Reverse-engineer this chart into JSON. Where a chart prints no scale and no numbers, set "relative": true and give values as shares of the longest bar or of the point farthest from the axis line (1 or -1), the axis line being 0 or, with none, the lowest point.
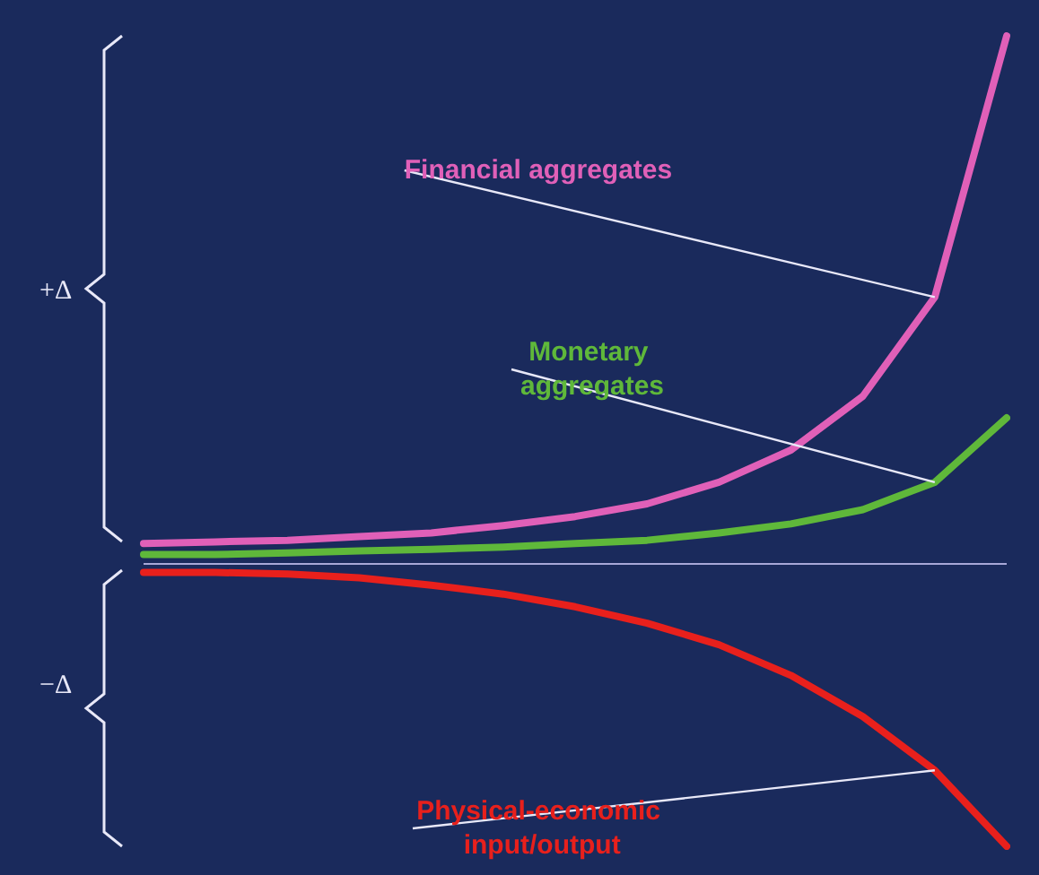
{
  "chart_data": {
    "type": "line",
    "relative": true,
    "categories": [
      null,
      null,
      null,
      null,
      null,
      null,
      null,
      null,
      null,
      null,
      null,
      null,
      null
    ],
    "series": [
      {
        "name": "Financial aggregates",
        "color": "#e060b8",
        "values": [
          0.038,
          0.041,
          0.044,
          0.051,
          0.058,
          0.072,
          0.089,
          0.113,
          0.154,
          0.215,
          0.317,
          0.505,
          1
        ]
      },
      {
        "name": "Monetary aggregates",
        "color": "#5fb83a",
        "values": [
          0.017,
          0.017,
          0.02,
          0.024,
          0.027,
          0.031,
          0.038,
          0.044,
          0.058,
          0.075,
          0.102,
          0.154,
          0.276
        ]
      },
      {
        "name": "Physical-economic input/output",
        "color": "#e8201c",
        "values": [
          -0.017,
          -0.017,
          -0.02,
          -0.027,
          -0.041,
          -0.058,
          -0.082,
          -0.113,
          -0.154,
          -0.212,
          -0.29,
          -0.392,
          -0.536
        ]
      }
    ],
    "annotations": [
      "+Δ",
      "−Δ"
    ],
    "ref_lines": [
      {
        "axis": "y",
        "value": 0,
        "color": "#a8a8d8"
      }
    ],
    "legend": false,
    "grid": false,
    "marker": "none",
    "line_style": "solid"
  }
}
